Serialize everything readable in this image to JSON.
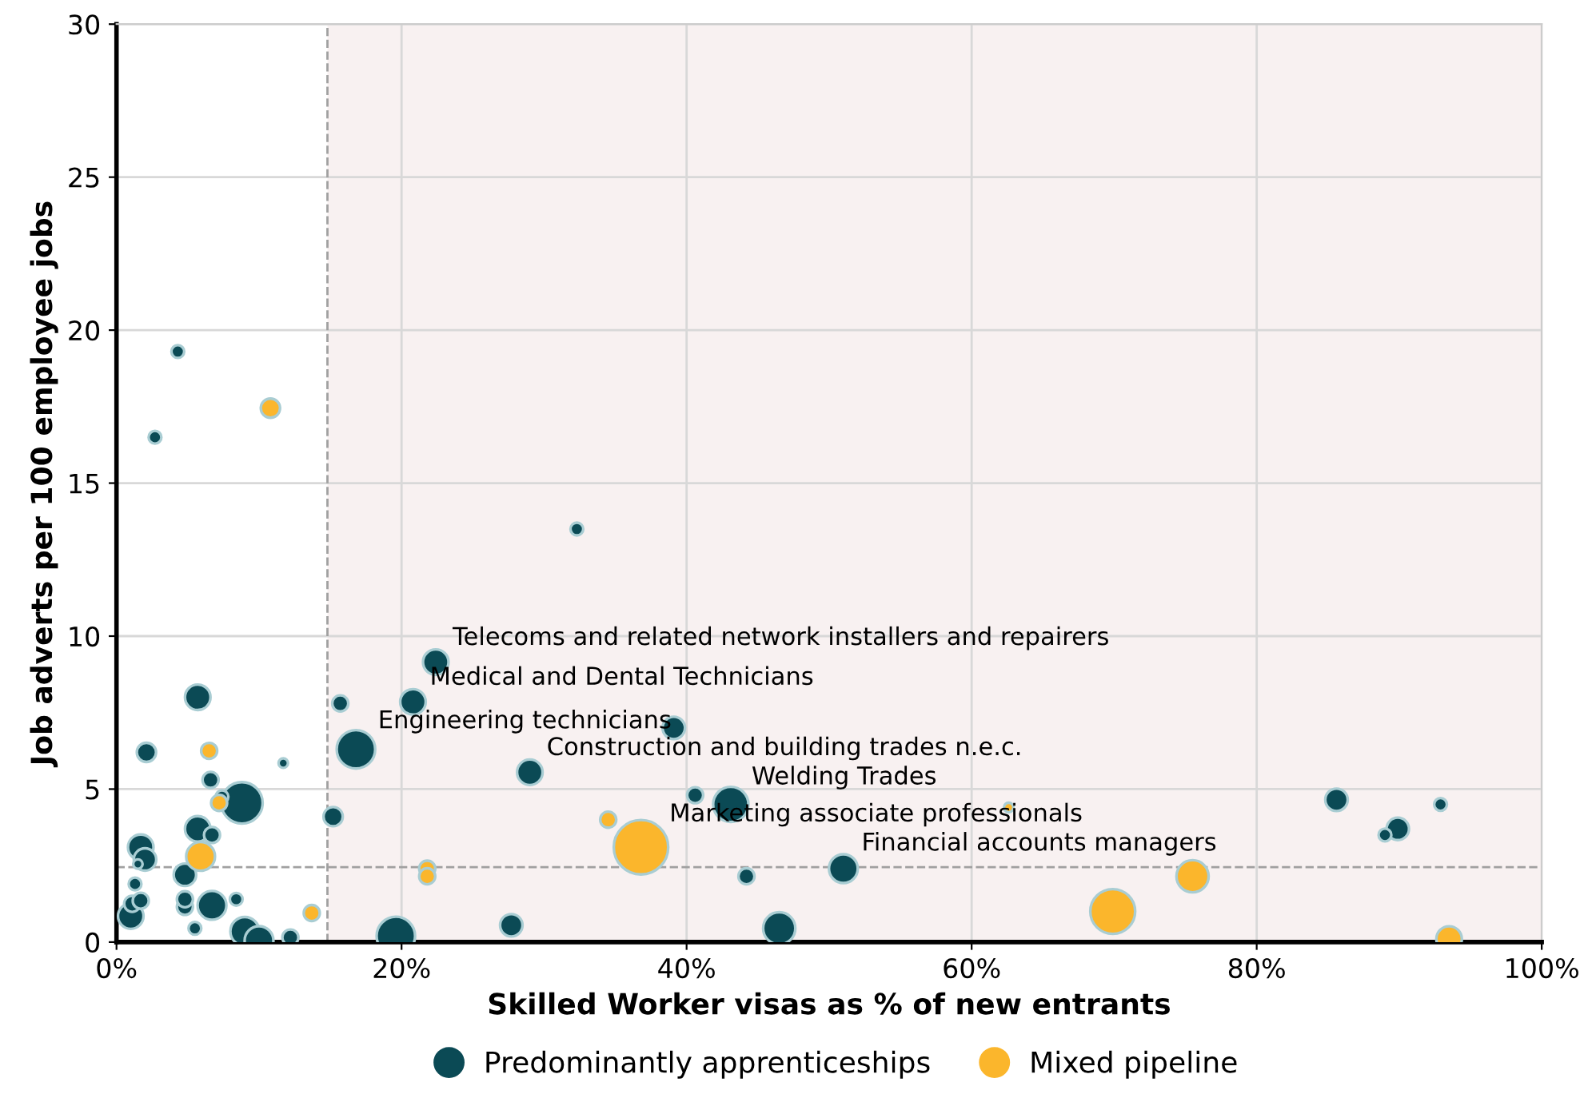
{
  "chart_data": {
    "type": "bubble",
    "xlabel": "Skilled Worker visas as % of new entrants",
    "ylabel": "Job adverts per 100 employee jobs",
    "xlim": [
      0,
      100
    ],
    "ylim": [
      0,
      30
    ],
    "xticks": [
      {
        "value": 0,
        "label": "0%"
      },
      {
        "value": 20,
        "label": "20%"
      },
      {
        "value": 40,
        "label": "40%"
      },
      {
        "value": 60,
        "label": "60%"
      },
      {
        "value": 80,
        "label": "80%"
      },
      {
        "value": 100,
        "label": "100%"
      }
    ],
    "yticks": [
      0,
      5,
      10,
      15,
      20,
      25,
      30
    ],
    "grid": true,
    "legend": "bottom",
    "ref_lines": [
      {
        "axis": "x",
        "value": 14.8,
        "line_style": "dashed",
        "color": "#a0a0a0"
      },
      {
        "axis": "y",
        "value": 2.45,
        "line_style": "dashed",
        "color": "#a0a0a0"
      }
    ],
    "bands": [
      {
        "axis": "x",
        "from": 14.8,
        "to": 100,
        "color": "#f8f1f1"
      }
    ],
    "series": [
      {
        "name": "Predominantly apprenticeships",
        "color": "#0b4a55",
        "x": [
          4.3,
          2.7,
          32.3,
          22.4,
          20.8,
          15.7,
          5.7,
          16.8,
          39.1,
          29.0,
          2.1,
          11.7,
          40.6,
          43.1,
          8.8,
          6.6,
          15.2,
          5.7,
          1.7,
          2.0,
          4.8,
          1.3,
          6.7,
          1.0,
          4.8,
          4.8,
          8.4,
          5.5,
          9.0,
          10.0,
          12.2,
          19.6,
          27.7,
          44.2,
          51.0,
          46.5,
          85.6,
          92.9,
          89.9,
          89.0,
          1.1,
          1.7,
          1.5,
          6.7,
          7.4
        ],
        "values": [
          19.3,
          16.5,
          13.5,
          9.15,
          7.85,
          7.8,
          8.0,
          6.3,
          7.0,
          5.55,
          6.2,
          5.85,
          4.8,
          4.5,
          4.55,
          5.3,
          4.1,
          3.7,
          3.1,
          2.7,
          2.2,
          1.9,
          1.2,
          0.85,
          1.15,
          1.4,
          1.4,
          0.45,
          0.35,
          0.05,
          0.15,
          0.2,
          0.55,
          2.15,
          2.4,
          0.45,
          4.65,
          4.5,
          3.7,
          3.5,
          1.25,
          1.35,
          2.55,
          3.5,
          4.75
        ],
        "sizes": [
          0.055,
          0.055,
          0.055,
          0.22,
          0.22,
          0.087,
          0.22,
          0.5,
          0.17,
          0.22,
          0.125,
          0.03,
          0.087,
          0.42,
          0.58,
          0.087,
          0.125,
          0.22,
          0.22,
          0.17,
          0.17,
          0.055,
          0.28,
          0.22,
          0.087,
          0.087,
          0.055,
          0.055,
          0.28,
          0.28,
          0.087,
          0.5,
          0.17,
          0.087,
          0.28,
          0.35,
          0.17,
          0.055,
          0.17,
          0.055,
          0.087,
          0.087,
          0.03,
          0.087,
          0.055
        ]
      },
      {
        "name": "Mixed pipeline",
        "color": "#fbb62c",
        "x": [
          10.8,
          6.5,
          5.9,
          13.7,
          21.8,
          21.8,
          34.5,
          36.8,
          62.6,
          75.5,
          69.9,
          93.5,
          7.2
        ],
        "values": [
          17.45,
          6.25,
          2.8,
          0.95,
          2.4,
          2.15,
          4.0,
          3.1,
          4.4,
          2.15,
          1.0,
          0.1,
          4.55
        ],
        "sizes": [
          0.125,
          0.087,
          0.28,
          0.087,
          0.087,
          0.087,
          0.087,
          1,
          0.03,
          0.35,
          0.68,
          0.22,
          0.087
        ]
      }
    ],
    "annotations": [
      {
        "text": "Telecoms and related network installers and repairers",
        "x": 22.4,
        "y": 9.15
      },
      {
        "text": "Medical and Dental Technicians",
        "x": 20.8,
        "y": 7.85
      },
      {
        "text": "Engineering technicians",
        "x": 16.8,
        "y": 6.3
      },
      {
        "text": "Construction and building trades n.e.c.",
        "x": 29.0,
        "y": 5.55
      },
      {
        "text": "Welding Trades",
        "x": 43.1,
        "y": 4.5
      },
      {
        "text": "Marketing associate professionals",
        "x": 36.8,
        "y": 3.1
      },
      {
        "text": "Financial accounts managers",
        "x": 51.0,
        "y": 2.4
      }
    ]
  }
}
